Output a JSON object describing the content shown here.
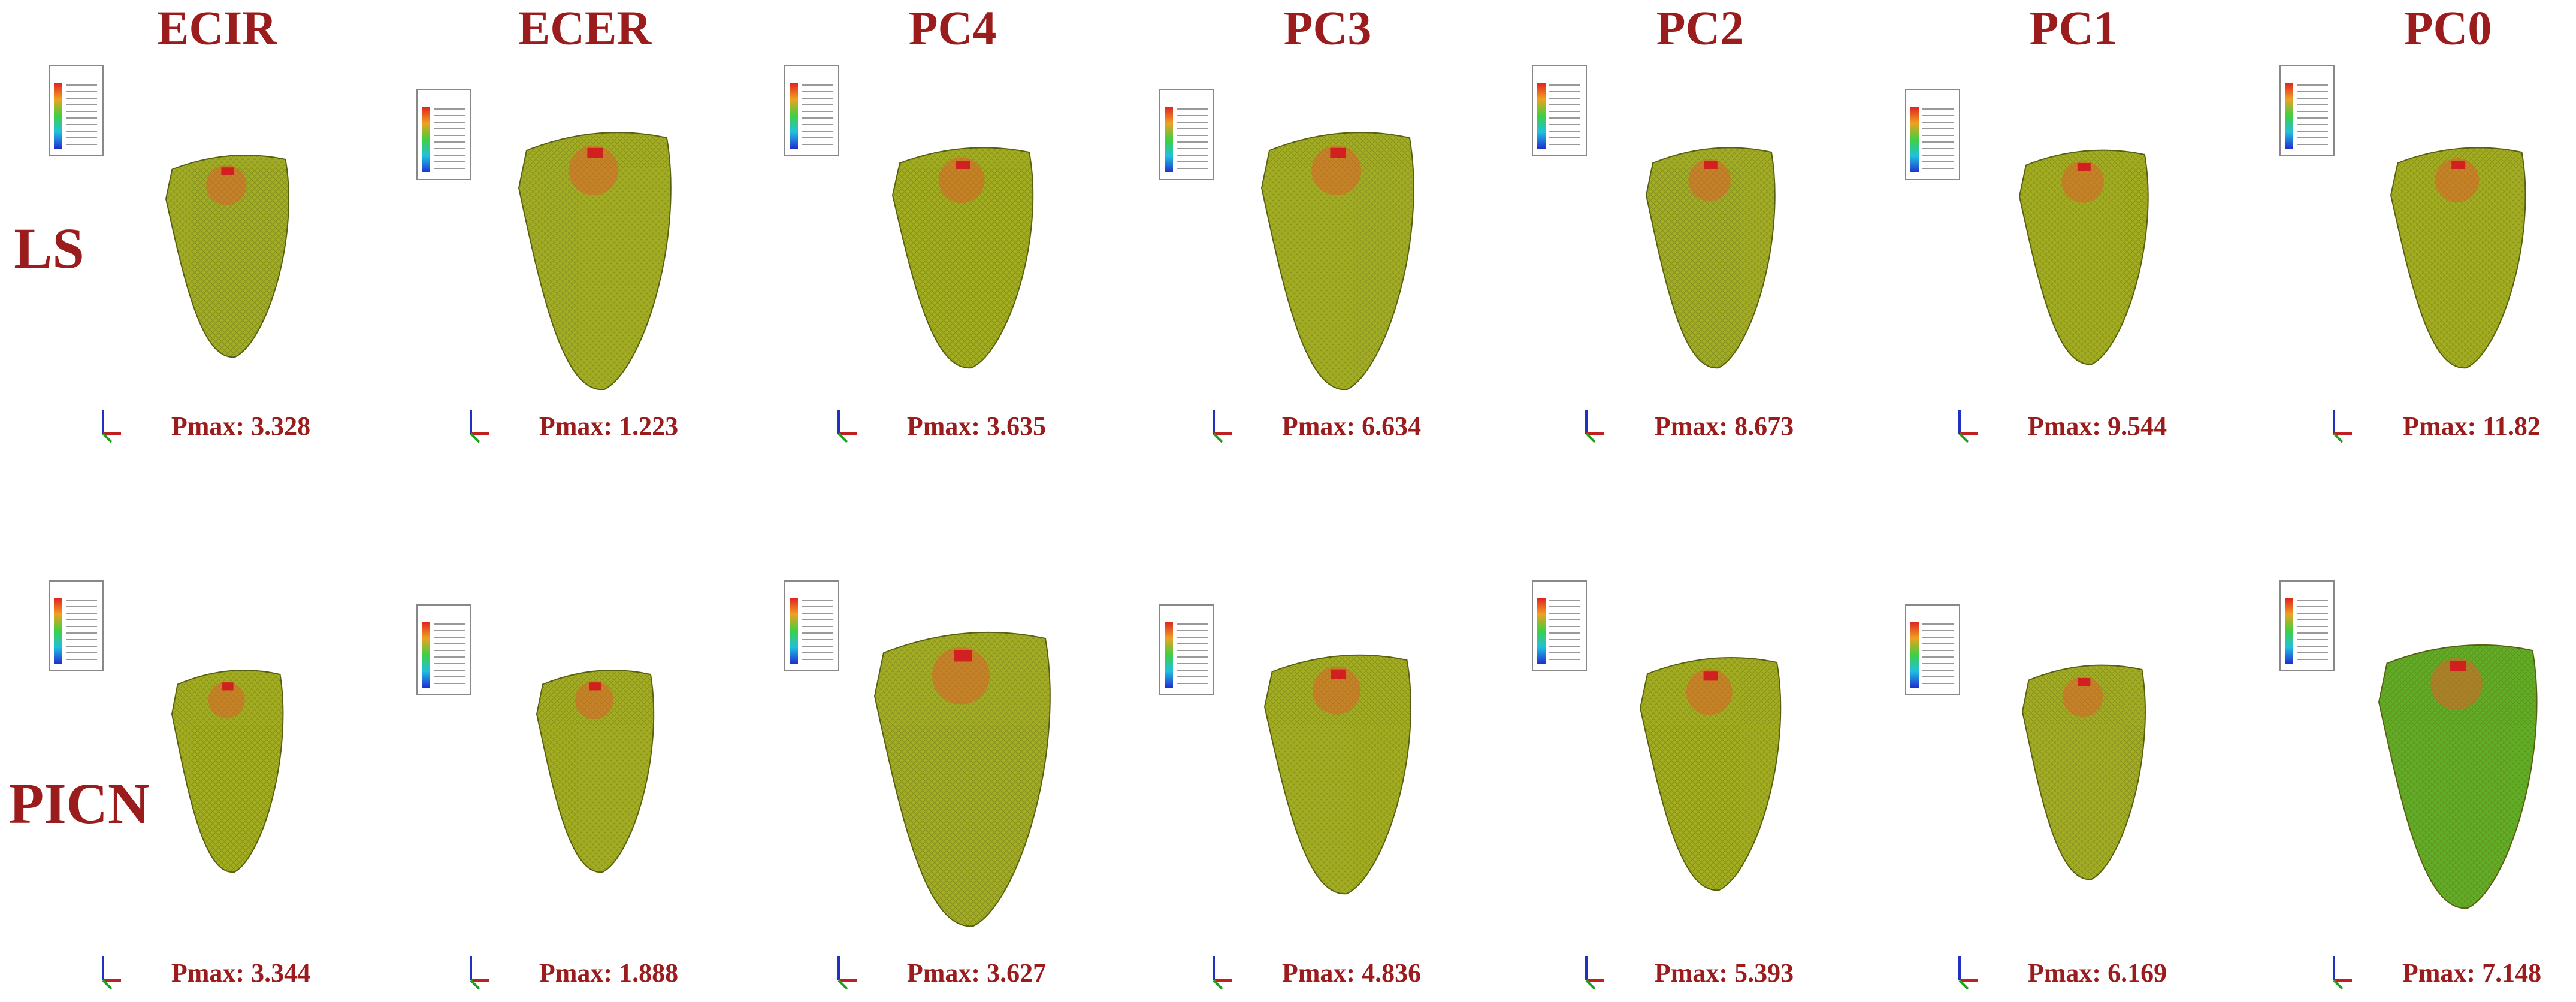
{
  "columns": [
    "ECIR",
    "ECER",
    "PC4",
    "PC3",
    "PC2",
    "PC1",
    "PC0"
  ],
  "rows": [
    {
      "label": "LS",
      "cells": [
        "Pmax: 3.328",
        "Pmax: 1.223",
        "Pmax: 3.635",
        "Pmax: 6.634",
        "Pmax: 8.673",
        "Pmax: 9.544",
        "Pmax: 11.82"
      ]
    },
    {
      "label": "PICN",
      "cells": [
        "Pmax: 3.344",
        "Pmax: 1.888",
        "Pmax: 3.627",
        "Pmax: 4.836",
        "Pmax: 5.393",
        "Pmax: 6.169",
        "Pmax: 7.148"
      ]
    }
  ]
}
